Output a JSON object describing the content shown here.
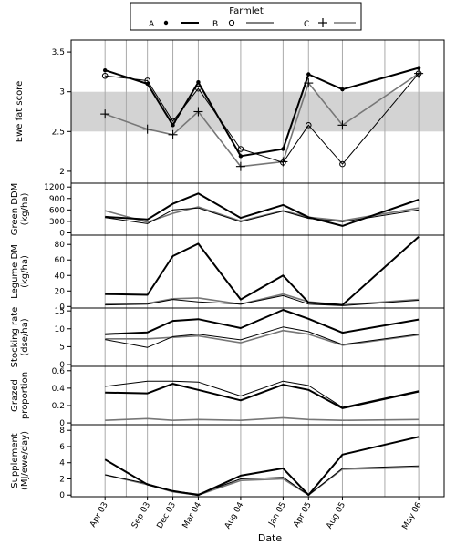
{
  "legend": {
    "title": "Farmlet",
    "entries": [
      {
        "label": "A",
        "marker": "dot",
        "line": "thick-black"
      },
      {
        "label": "B",
        "marker": "circle",
        "line": "thin-black"
      },
      {
        "label": "C",
        "marker": "plus",
        "line": "medium-grey"
      }
    ]
  },
  "xlabel": "Date",
  "chart_data": {
    "type": "line",
    "x_tick_labels": [
      "Apr 03",
      "Sep 03",
      "Dec 03",
      "Mar 04",
      "Aug 04",
      "Jan 05",
      "Apr 05",
      "Aug 05",
      "May 06"
    ],
    "x_months": [
      0,
      5,
      8,
      11,
      16,
      21,
      24,
      28,
      37
    ],
    "x_grid_months": [
      0,
      2.5,
      5,
      8,
      11,
      16,
      21,
      24,
      28,
      33,
      37
    ],
    "panels": [
      {
        "key": "ewe",
        "ylabel": [
          "Ewe fat score"
        ],
        "yticks": [
          "2",
          "2.5",
          "3",
          "3.5"
        ],
        "ytick_values": [
          2,
          2.5,
          3,
          3.5
        ],
        "ylim": [
          1.85,
          3.65
        ],
        "band": [
          2.5,
          3.0
        ],
        "series": [
          {
            "name": "A",
            "values": [
              3.27,
              3.1,
              2.58,
              3.12,
              2.19,
              2.28,
              3.22,
              3.03,
              3.3
            ]
          },
          {
            "name": "B",
            "values": [
              3.2,
              3.14,
              2.63,
              3.04,
              2.28,
              2.11,
              2.58,
              2.09,
              3.23
            ]
          },
          {
            "name": "C",
            "values": [
              2.72,
              2.53,
              2.46,
              2.75,
              2.06,
              2.12,
              3.11,
              2.58,
              3.23
            ]
          }
        ]
      },
      {
        "key": "green",
        "ylabel": [
          "Green DDM",
          "(kg/ha)"
        ],
        "yticks": [
          "0",
          "300",
          "600",
          "900",
          "1200"
        ],
        "ytick_values": [
          0,
          300,
          600,
          900,
          1200
        ],
        "ylim": [
          -60,
          1300
        ],
        "series": [
          {
            "name": "A",
            "values": [
              420,
              350,
              760,
              1030,
              390,
              730,
              410,
              180,
              870
            ]
          },
          {
            "name": "B",
            "values": [
              400,
              240,
              600,
              650,
              290,
              570,
              380,
              290,
              600
            ]
          },
          {
            "name": "C",
            "values": [
              580,
              280,
              510,
              680,
              310,
              580,
              410,
              320,
              650
            ]
          }
        ]
      },
      {
        "key": "legume",
        "ylabel": [
          "Legume DM",
          "(kg/ha)"
        ],
        "yticks": [
          "0",
          "20",
          "40",
          "60",
          "80"
        ],
        "ytick_values": [
          0,
          20,
          40,
          60,
          80
        ],
        "ylim": [
          -2,
          92
        ],
        "series": [
          {
            "name": "A",
            "values": [
              16,
              15,
              65,
              81,
              9,
              40,
              5,
              2,
              90
            ]
          },
          {
            "name": "B",
            "values": [
              2,
              3,
              9,
              6,
              3,
              14,
              3,
              1,
              8
            ]
          },
          {
            "name": "C",
            "values": [
              3,
              4,
              10,
              11,
              3,
              16,
              6,
              2,
              9
            ]
          }
        ]
      },
      {
        "key": "stocking",
        "ylabel": [
          "Stocking rate",
          "(dse/ha)"
        ],
        "yticks": [
          "0",
          "5",
          "10",
          "15"
        ],
        "ytick_values": [
          0,
          5,
          10,
          15
        ],
        "ylim": [
          -0.5,
          15.8
        ],
        "series": [
          {
            "name": "A",
            "values": [
              8.5,
              9,
              12.2,
              12.7,
              10.2,
              15.3,
              12.8,
              8.9,
              12.6
            ]
          },
          {
            "name": "B",
            "values": [
              7,
              4.8,
              7.8,
              8.5,
              6.9,
              10.5,
              9.2,
              5.6,
              8.5
            ]
          },
          {
            "name": "C",
            "values": [
              7.2,
              7.2,
              7.6,
              8,
              6.1,
              9.5,
              8.5,
              5.4,
              8.3
            ]
          }
        ]
      },
      {
        "key": "grazed",
        "ylabel": [
          "Grazed",
          "proportion"
        ],
        "yticks": [
          "0",
          "0.2",
          "0.4",
          "0.6"
        ],
        "ytick_values": [
          0,
          0.2,
          0.4,
          0.6
        ],
        "ylim": [
          -0.02,
          0.65
        ],
        "series": [
          {
            "name": "A",
            "values": [
              0.35,
              0.34,
              0.45,
              0.38,
              0.26,
              0.44,
              0.38,
              0.17,
              0.36
            ]
          },
          {
            "name": "B",
            "values": [
              0.42,
              0.48,
              0.48,
              0.47,
              0.31,
              0.48,
              0.43,
              0.18,
              0.37
            ]
          },
          {
            "name": "C",
            "values": [
              0.03,
              0.05,
              0.03,
              0.04,
              0.03,
              0.06,
              0.04,
              0.03,
              0.04
            ]
          }
        ]
      },
      {
        "key": "supp",
        "ylabel": [
          "Supplement",
          "(MJ/ewe/day)"
        ],
        "yticks": [
          "0",
          "2",
          "4",
          "6",
          "8"
        ],
        "ytick_values": [
          0,
          2,
          4,
          6,
          8
        ],
        "ylim": [
          -0.2,
          8.7
        ],
        "series": [
          {
            "name": "A",
            "values": [
              4.4,
              1.3,
              0.5,
              0,
              2.4,
              3.3,
              0,
              5,
              7.2
            ]
          },
          {
            "name": "B",
            "values": [
              2.5,
              1.4,
              0.5,
              0.1,
              2,
              2.2,
              0,
              3.3,
              3.6
            ]
          },
          {
            "name": "C",
            "values": [
              2.5,
              1.3,
              0.4,
              0,
              1.8,
              2,
              0,
              3.2,
              3.4
            ]
          }
        ]
      }
    ]
  }
}
